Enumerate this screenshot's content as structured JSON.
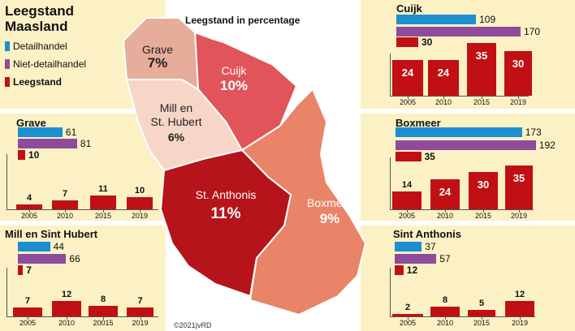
{
  "title_line1": "Leegstand",
  "title_line2": "Maasland",
  "legend": {
    "detail": "Detailhandel",
    "niet": "Niet-detailhandel",
    "leeg": "Leegstand"
  },
  "colors": {
    "detail": "#1b8fcf",
    "niet": "#8e4b9b",
    "leeg": "#c01014"
  },
  "map": {
    "title": "Leegstand in percentage",
    "regions": [
      {
        "name": "Grave",
        "pct": "7%",
        "color": "#e5ad9a"
      },
      {
        "name": "Cuijk",
        "pct": "10%",
        "color": "#e0545a"
      },
      {
        "name_line1": "Mill en",
        "name_line2": "St. Hubert",
        "pct": "6%",
        "color": "#f7d6c7"
      },
      {
        "name": "St. Anthonis",
        "pct": "11%",
        "color": "#b5141a"
      },
      {
        "name": "Boxmeer",
        "pct": "9%",
        "color": "#e98468"
      }
    ]
  },
  "credit": "©2021|vRD",
  "chart_data": [
    {
      "type": "bar",
      "title": "Cuijk",
      "horizontal": {
        "Detailhandel": 109,
        "Niet-detailhandel": 170,
        "Leegstand": 30
      },
      "categories": [
        "2005",
        "2010",
        "2015",
        "2019"
      ],
      "values": [
        24,
        24,
        35,
        30
      ],
      "series_name": "Leegstand"
    },
    {
      "type": "bar",
      "title": "Grave",
      "horizontal": {
        "Detailhandel": 61,
        "Niet-detailhandel": 81,
        "Leegstand": 10
      },
      "categories": [
        "2005",
        "2010",
        "2015",
        "2019"
      ],
      "values": [
        4,
        7,
        11,
        10
      ],
      "series_name": "Leegstand"
    },
    {
      "type": "bar",
      "title": "Boxmeer",
      "horizontal": {
        "Detailhandel": 173,
        "Niet-detailhandel": 192,
        "Leegstand": 35
      },
      "categories": [
        "2005",
        "2010",
        "2015",
        "2019"
      ],
      "values": [
        14,
        24,
        30,
        35
      ],
      "series_name": "Leegstand"
    },
    {
      "type": "bar",
      "title": "Mill en Sint Hubert",
      "horizontal": {
        "Detailhandel": 44,
        "Niet-detailhandel": 66,
        "Leegstand": 7
      },
      "categories": [
        "2005",
        "2010",
        "20015",
        "2019"
      ],
      "values": [
        7,
        12,
        8,
        7
      ],
      "series_name": "Leegstand"
    },
    {
      "type": "bar",
      "title": "Sint Anthonis",
      "horizontal": {
        "Detailhandel": 37,
        "Niet-detailhandel": 57,
        "Leegstand": 12
      },
      "categories": [
        "2005",
        "2010",
        "2015",
        "2019"
      ],
      "values": [
        2,
        8,
        5,
        12
      ],
      "series_name": "Leegstand"
    }
  ]
}
